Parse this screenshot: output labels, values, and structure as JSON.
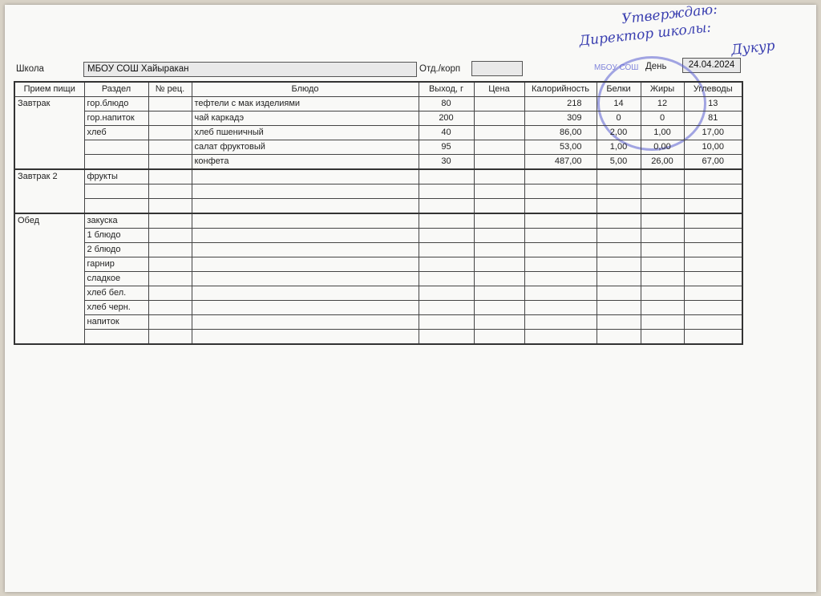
{
  "header": {
    "school_label": "Школа",
    "school_value": "МБОУ СОШ Хайыракан",
    "dept_label": "Отд./корп",
    "dept_value": "",
    "day_label": "День",
    "day_value": "24.04.2024"
  },
  "approval": {
    "line1": "Утверждаю:",
    "line2": "Директор школы:",
    "signature": "Дукур",
    "stamp_text": "МБОУ СОШ"
  },
  "columns": [
    "Прием пищи",
    "Раздел",
    "№ рец.",
    "Блюдо",
    "Выход, г",
    "Цена",
    "Калорийность",
    "Белки",
    "Жиры",
    "Углеводы"
  ],
  "meals": [
    {
      "name": "Завтрак",
      "rows": [
        [
          "гор.блюдо",
          "",
          "тефтели с мак изделиями",
          "80",
          "",
          "218",
          "14",
          "12",
          "13"
        ],
        [
          "гор.напиток",
          "",
          "чай каркадэ",
          "200",
          "",
          "309",
          "0",
          "0",
          "81"
        ],
        [
          "хлеб",
          "",
          "хлеб пшеничный",
          "40",
          "",
          "86,00",
          "2,00",
          "1,00",
          "17,00"
        ],
        [
          "",
          "",
          "салат фруктовый",
          "95",
          "",
          "53,00",
          "1,00",
          "0,00",
          "10,00"
        ],
        [
          "",
          "",
          "конфета",
          "30",
          "",
          "487,00",
          "5,00",
          "26,00",
          "67,00"
        ]
      ]
    },
    {
      "name": "Завтрак 2",
      "rows": [
        [
          "фрукты",
          "",
          "",
          "",
          "",
          "",
          "",
          "",
          ""
        ],
        [
          "",
          "",
          "",
          "",
          "",
          "",
          "",
          "",
          ""
        ],
        [
          "",
          "",
          "",
          "",
          "",
          "",
          "",
          "",
          ""
        ]
      ]
    },
    {
      "name": "Обед",
      "rows": [
        [
          "закуска",
          "",
          "",
          "",
          "",
          "",
          "",
          "",
          ""
        ],
        [
          "1 блюдо",
          "",
          "",
          "",
          "",
          "",
          "",
          "",
          ""
        ],
        [
          "2 блюдо",
          "",
          "",
          "",
          "",
          "",
          "",
          "",
          ""
        ],
        [
          "гарнир",
          "",
          "",
          "",
          "",
          "",
          "",
          "",
          ""
        ],
        [
          "сладкое",
          "",
          "",
          "",
          "",
          "",
          "",
          "",
          ""
        ],
        [
          "хлеб бел.",
          "",
          "",
          "",
          "",
          "",
          "",
          "",
          ""
        ],
        [
          "хлеб черн.",
          "",
          "",
          "",
          "",
          "",
          "",
          "",
          ""
        ],
        [
          "напиток",
          "",
          "",
          "",
          "",
          "",
          "",
          "",
          ""
        ],
        [
          "",
          "",
          "",
          "",
          "",
          "",
          "",
          "",
          ""
        ]
      ]
    }
  ]
}
